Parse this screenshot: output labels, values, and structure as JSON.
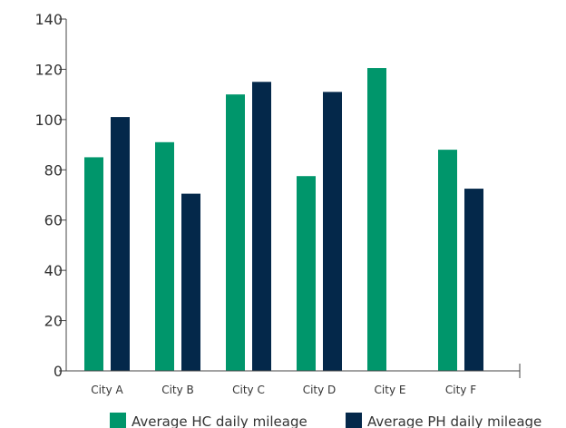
{
  "chart_data": {
    "type": "bar",
    "title": "",
    "xlabel": "",
    "ylabel": "",
    "categories": [
      "City A",
      "City B",
      "City C",
      "City D",
      "City E",
      "City F"
    ],
    "series": [
      {
        "name": "Average HC daily mileage",
        "color": "#00966b",
        "values": [
          85,
          91,
          110,
          77.5,
          120.5,
          88
        ]
      },
      {
        "name": "Average PH daily mileage",
        "color": "#04284a",
        "values": [
          101,
          70.5,
          115,
          111,
          null,
          72.5
        ]
      }
    ],
    "ylim": [
      0,
      140
    ],
    "yticks": [
      0,
      20,
      40,
      60,
      80,
      100,
      120,
      140
    ],
    "grid": false,
    "legend_position": "bottom"
  }
}
